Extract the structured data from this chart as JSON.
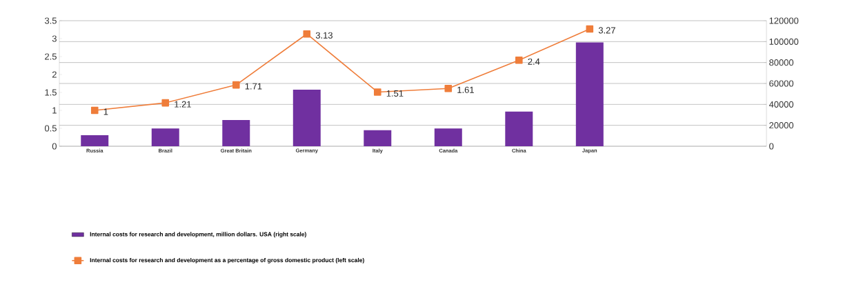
{
  "chart_data": {
    "type": "bar",
    "categories": [
      "Russia",
      "Brazil",
      "Great Britain",
      "Germany",
      "Italy",
      "Canada",
      "China",
      "Japan",
      null,
      null
    ],
    "series": [
      {
        "name": "Internal costs for research and development, million dollars. USA (right scale)",
        "axis": "y2",
        "color": "#7030a0",
        "values": [
          10500,
          16900,
          25000,
          54100,
          15300,
          17000,
          33100,
          99200,
          null,
          null
        ]
      },
      {
        "name": "Internal costs for research and development as a percentage of gross domestic product (left scale)",
        "type": "line",
        "color": "#ef7d3a",
        "marker": "square",
        "values": [
          1,
          1.21,
          1.71,
          3.13,
          1.51,
          1.61,
          2.4,
          3.27,
          null,
          null
        ],
        "value_labels": [
          "1",
          "1.21",
          "1.71",
          "3.13",
          "1.51",
          "1.61",
          "2.4",
          "3.27",
          null,
          null
        ]
      }
    ],
    "ylim": [
      0,
      3.5
    ],
    "yticks": [
      0,
      0.5,
      1,
      1.5,
      2,
      2.5,
      3,
      3.5
    ],
    "y2lim": [
      0,
      120000
    ],
    "y2ticks": [
      0,
      20000,
      40000,
      60000,
      80000,
      100000,
      120000
    ],
    "grid": "y",
    "legend": "bottom"
  }
}
